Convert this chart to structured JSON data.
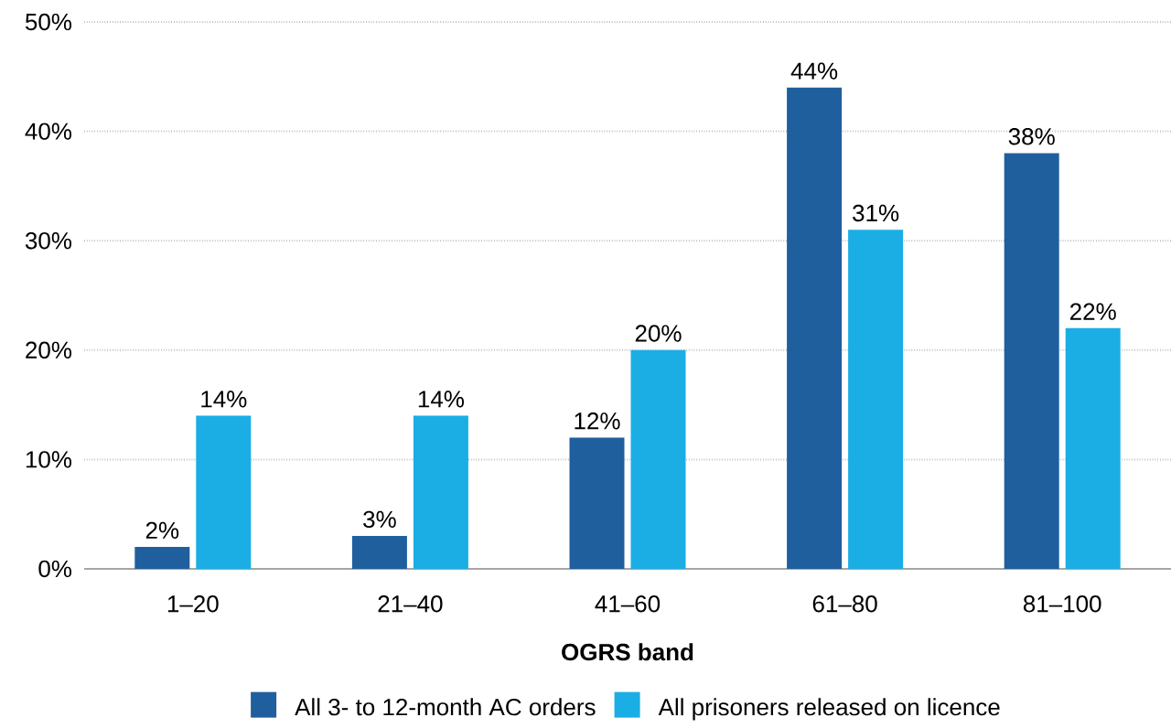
{
  "chart_data": {
    "type": "bar",
    "xlabel": "OGRS band",
    "categories": [
      "1–20",
      "21–40",
      "41–60",
      "61–80",
      "81–100"
    ],
    "series": [
      {
        "name": "All 3- to 12-month AC orders",
        "color": "#1f5f9e",
        "values": [
          2,
          3,
          12,
          44,
          38
        ],
        "value_labels": [
          "2%",
          "3%",
          "12%",
          "44%",
          "38%"
        ]
      },
      {
        "name": "All prisoners released on licence",
        "color": "#1aaee5",
        "values": [
          14,
          14,
          20,
          31,
          22
        ],
        "value_labels": [
          "14%",
          "14%",
          "20%",
          "31%",
          "22%"
        ]
      }
    ],
    "ylim": [
      0,
      50
    ],
    "yticks": [
      {
        "value": 0,
        "label": "0%"
      },
      {
        "value": 10,
        "label": "10%"
      },
      {
        "value": 20,
        "label": "20%"
      },
      {
        "value": 30,
        "label": "30%"
      },
      {
        "value": 40,
        "label": "40%"
      },
      {
        "value": 50,
        "label": "50%"
      }
    ],
    "grid": "y",
    "legend": "bottom"
  }
}
